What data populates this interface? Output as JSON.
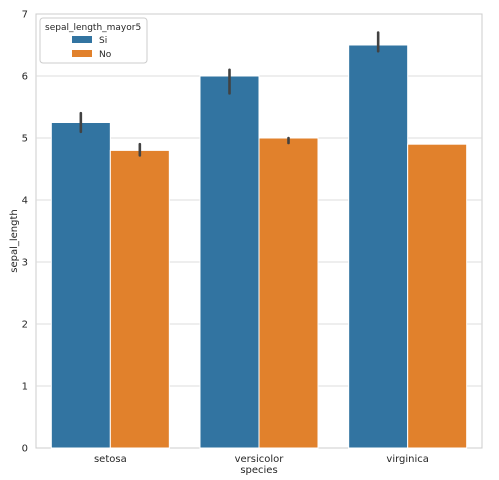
{
  "chart_data": {
    "type": "bar",
    "categories": [
      "setosa",
      "versicolor",
      "virginica"
    ],
    "series": [
      {
        "name": "Si",
        "color": "#3274a1",
        "values": [
          5.25,
          6.0,
          6.5
        ],
        "error": [
          [
            5.1,
            5.4
          ],
          [
            5.72,
            6.1
          ],
          [
            6.4,
            6.7
          ]
        ]
      },
      {
        "name": "No",
        "color": "#e1812c",
        "values": [
          4.8,
          5.0,
          4.9
        ],
        "error": [
          [
            4.72,
            4.9
          ],
          [
            4.92,
            5.0
          ],
          null
        ]
      }
    ],
    "xlabel": "species",
    "ylabel": "sepal_length",
    "ylim": [
      0,
      7
    ],
    "yticks": [
      "0",
      "1",
      "2",
      "3",
      "4",
      "5",
      "6",
      "7"
    ],
    "legend": {
      "title": "sepal_length_mayor5",
      "placement": "top-left"
    },
    "grid": true
  }
}
